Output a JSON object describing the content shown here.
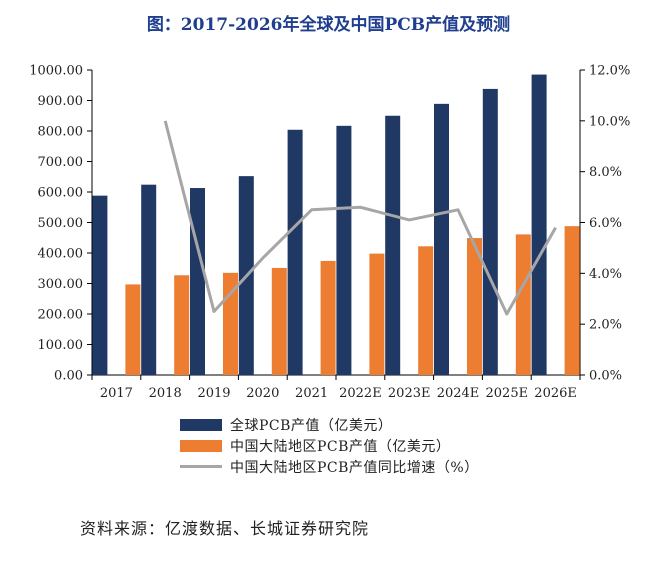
{
  "title": "图：2017-2026年全球及中国PCB产值及预测",
  "source": "资料来源：亿渡数据、长城证券研究院",
  "colors": {
    "global_bar": "#203864",
    "china_bar": "#ed7d31",
    "growth_line": "#a6a6a6",
    "title": "#1f3e8f"
  },
  "chart_data": {
    "type": "bar",
    "title": "图：2017-2026年全球及中国PCB产值及预测",
    "categories": [
      "2017",
      "2018",
      "2019",
      "2020",
      "2021",
      "2022E",
      "2023E",
      "2024E",
      "2025E",
      "2026E"
    ],
    "series": [
      {
        "name": "全球PCB产值（亿美元）",
        "type": "bar",
        "axis": "left",
        "values": [
          588,
          624,
          613,
          652,
          804,
          817,
          850,
          889,
          938,
          985
        ]
      },
      {
        "name": "中国大陆地区PCB产值（亿美元）",
        "type": "bar",
        "axis": "left",
        "values": [
          297,
          327,
          335,
          351,
          374,
          398,
          422,
          449,
          461,
          488
        ]
      },
      {
        "name": "中国大陆地区PCB产值同比增速（%）",
        "type": "line",
        "axis": "right",
        "values": [
          null,
          10.0,
          2.5,
          4.6,
          6.5,
          6.6,
          6.1,
          6.5,
          2.4,
          5.8
        ]
      }
    ],
    "left_axis": {
      "ylim": [
        0,
        1000
      ],
      "ticks": [
        "0.00",
        "100.00",
        "200.00",
        "300.00",
        "400.00",
        "500.00",
        "600.00",
        "700.00",
        "800.00",
        "900.00",
        "1000.00"
      ]
    },
    "right_axis": {
      "ylim": [
        0,
        12
      ],
      "ticks": [
        "0.0%",
        "2.0%",
        "4.0%",
        "6.0%",
        "8.0%",
        "10.0%",
        "12.0%"
      ]
    },
    "legend_position": "bottom",
    "grid": false
  }
}
